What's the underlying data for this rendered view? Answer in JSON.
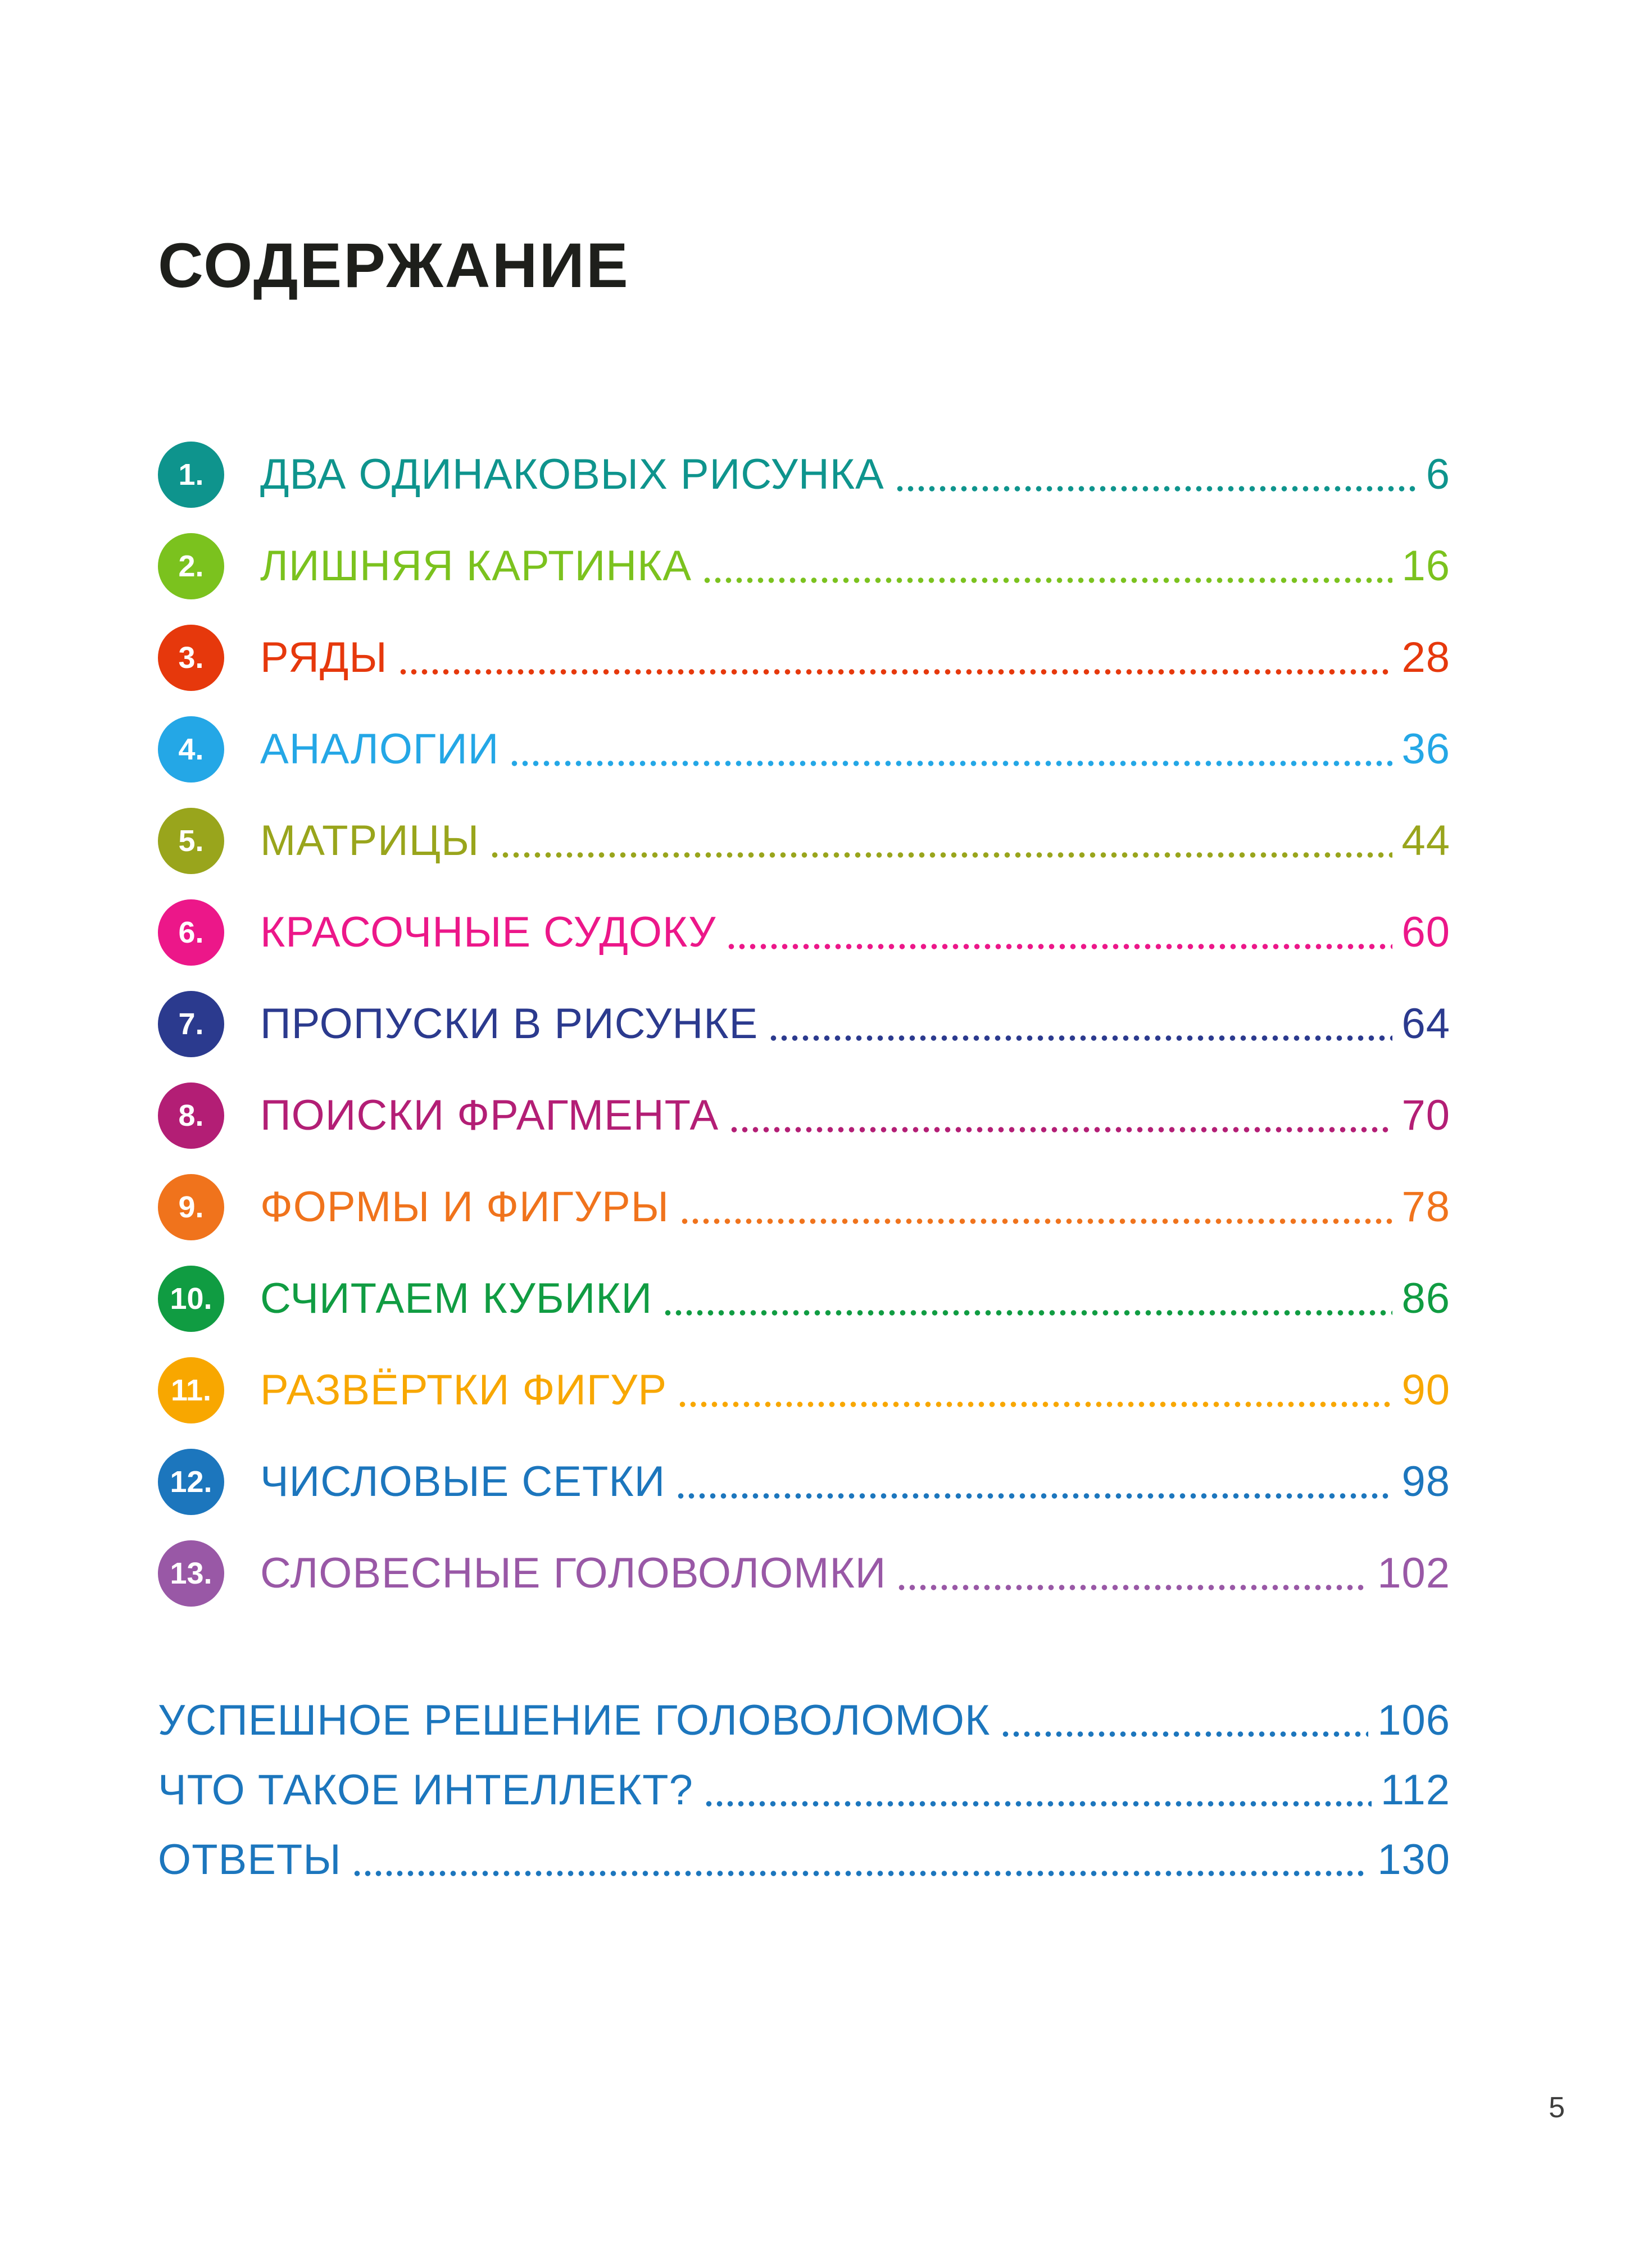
{
  "page": {
    "title": "СОДЕРЖАНИЕ",
    "title_color": "#1e1f1b",
    "footer_page_number": "5",
    "footer_color": "#3f3f3e",
    "background_color": "#ffffff"
  },
  "toc": {
    "items": [
      {
        "num": "1.",
        "label": "ДВА ОДИНАКОВЫХ РИСУНКА",
        "page": "6",
        "color": "#0E948D"
      },
      {
        "num": "2.",
        "label": "ЛИШНЯЯ КАРТИНКА",
        "page": "16",
        "color": "#7BC21E"
      },
      {
        "num": "3.",
        "label": "РЯДЫ",
        "page": "28",
        "color": "#E6380C"
      },
      {
        "num": "4.",
        "label": "АНАЛОГИИ",
        "page": "36",
        "color": "#24A7E6"
      },
      {
        "num": "5.",
        "label": "МАТРИЦЫ",
        "page": "44",
        "color": "#99A51C"
      },
      {
        "num": "6.",
        "label": "КРАСОЧНЫЕ СУДОКУ",
        "page": "60",
        "color": "#EC1789"
      },
      {
        "num": "7.",
        "label": "ПРОПУСКИ В РИСУНКЕ",
        "page": "64",
        "color": "#2B3A8E"
      },
      {
        "num": "8.",
        "label": "ПОИСКИ ФРАГМЕНТА",
        "page": "70",
        "color": "#B31E75"
      },
      {
        "num": "9.",
        "label": "ФОРМЫ И ФИГУРЫ",
        "page": "78",
        "color": "#F0731C"
      },
      {
        "num": "10.",
        "label": "СЧИТАЕМ КУБИКИ",
        "page": "86",
        "color": "#109C42"
      },
      {
        "num": "11.",
        "label": "РАЗВЁРТКИ ФИГУР",
        "page": "90",
        "color": "#F8A700"
      },
      {
        "num": "12.",
        "label": "ЧИСЛОВЫЕ СЕТКИ",
        "page": "98",
        "color": "#1C76BD"
      },
      {
        "num": "13.",
        "label": "СЛОВЕСНЫЕ ГОЛОВОЛОМКИ",
        "page": "102",
        "color": "#9958A6"
      }
    ],
    "extras": [
      {
        "label": "УСПЕШНОЕ РЕШЕНИЕ ГОЛОВОЛОМОК",
        "page": "106",
        "color": "#1C76BD"
      },
      {
        "label": "ЧТО ТАКОЕ ИНТЕЛЛЕКТ?",
        "page": "112",
        "color": "#1C76BD"
      },
      {
        "label": "ОТВЕТЫ",
        "page": "130",
        "color": "#1C76BD"
      }
    ]
  }
}
